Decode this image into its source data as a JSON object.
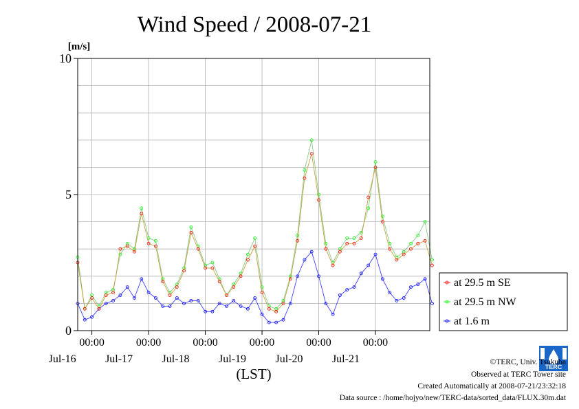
{
  "chart_data": {
    "type": "line",
    "title": "Wind Speed / 2008-07-21",
    "ylabel": "[m/s]",
    "xlabel": "(LST)",
    "ylim": [
      0,
      10
    ],
    "y_ticks": [
      "0",
      "5",
      "10"
    ],
    "x_range": [
      "2008-07-15T18:00",
      "2008-07-21T23:00"
    ],
    "x_time_ticks": [
      {
        "time": "2008-07-16T00:00",
        "label": "00:00",
        "date_label": "Jul-16"
      },
      {
        "time": "2008-07-17T00:00",
        "label": "00:00",
        "date_label": "Jul-17"
      },
      {
        "time": "2008-07-18T00:00",
        "label": "00:00",
        "date_label": "Jul-18"
      },
      {
        "time": "2008-07-19T00:00",
        "label": "00:00",
        "date_label": "Jul-19"
      },
      {
        "time": "2008-07-20T00:00",
        "label": "00:00",
        "date_label": "Jul-20"
      },
      {
        "time": "2008-07-21T00:00",
        "label": "00:00",
        "date_label": "Jul-21"
      }
    ],
    "grid": true,
    "legend_position": "right",
    "x_hours": [
      0,
      3,
      6,
      9,
      12,
      15,
      18,
      21,
      24,
      27,
      30,
      33,
      36,
      39,
      42,
      45,
      48,
      51,
      54,
      57,
      60,
      63,
      66,
      69,
      72,
      75,
      78,
      81,
      84,
      87,
      90,
      93,
      96,
      99,
      102,
      105,
      108,
      111,
      114,
      117,
      120,
      123,
      126,
      129,
      132,
      135,
      138,
      141,
      144,
      147,
      150
    ],
    "series": [
      {
        "name": "at 29.5 m SE",
        "color": "#ff0000",
        "line_color": "#c8a040",
        "values": [
          2.5,
          0.8,
          1.2,
          0.8,
          1.3,
          1.4,
          3.0,
          3.1,
          2.9,
          4.3,
          3.2,
          3.1,
          1.8,
          1.3,
          1.6,
          2.2,
          3.6,
          3.0,
          2.3,
          2.3,
          1.8,
          1.3,
          1.6,
          2.0,
          2.6,
          3.1,
          1.4,
          0.8,
          0.7,
          1.0,
          1.9,
          3.3,
          5.6,
          6.5,
          4.8,
          3.0,
          2.4,
          2.9,
          3.2,
          3.2,
          3.4,
          4.9,
          6.0,
          4.0,
          3.0,
          2.6,
          2.8,
          3.0,
          3.2,
          3.3,
          2.4
        ]
      },
      {
        "name": "at 29.5 m NW",
        "color": "#00ff00",
        "line_color": "#88c888",
        "values": [
          2.7,
          0.8,
          1.3,
          0.9,
          1.4,
          1.5,
          2.8,
          3.2,
          3.0,
          4.5,
          3.4,
          3.3,
          1.9,
          1.4,
          1.7,
          2.3,
          3.8,
          3.1,
          2.4,
          2.5,
          1.9,
          1.3,
          1.7,
          2.1,
          2.8,
          3.4,
          1.6,
          0.9,
          0.8,
          1.1,
          2.0,
          3.5,
          5.9,
          7.0,
          5.0,
          3.2,
          2.5,
          3.0,
          3.4,
          3.4,
          3.6,
          4.5,
          6.2,
          4.2,
          3.2,
          2.7,
          2.9,
          3.2,
          3.5,
          4.0,
          2.6
        ]
      },
      {
        "name": "at 1.6 m",
        "color": "#0000ff",
        "line_color": "#4040ff",
        "values": [
          1.0,
          0.4,
          0.5,
          0.8,
          1.0,
          1.1,
          1.3,
          1.6,
          1.2,
          1.9,
          1.4,
          1.2,
          0.9,
          0.9,
          1.2,
          1.0,
          1.1,
          1.1,
          0.7,
          0.7,
          1.0,
          0.9,
          1.1,
          0.9,
          0.8,
          1.2,
          0.6,
          0.3,
          0.3,
          0.4,
          1.0,
          2.0,
          2.6,
          2.9,
          2.0,
          1.0,
          0.6,
          1.3,
          1.5,
          1.6,
          2.1,
          2.4,
          2.8,
          1.9,
          1.4,
          1.1,
          1.2,
          1.6,
          1.7,
          1.9,
          1.0
        ]
      }
    ]
  },
  "footer": {
    "copyright": "©TERC, Univ. Tsukuba",
    "observed": "Observed at TERC Tower site",
    "created": "Created Automatically at 2008-07-21/23:32:18",
    "source": "Data source : /home/hojyo/new/TERC-data/sorted_data/FLUX.30m.dat"
  },
  "logo": {
    "text": "TERC",
    "color": "#1a66c8"
  }
}
